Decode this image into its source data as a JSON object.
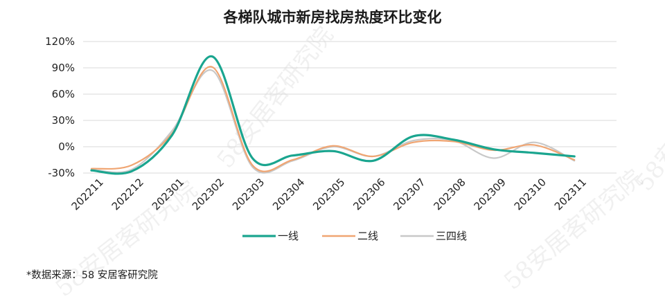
{
  "chart_data": {
    "type": "line",
    "title": "各梯队城市新房找房热度环比变化",
    "categories": [
      "202211",
      "202212",
      "202301",
      "202302",
      "202303",
      "202304",
      "202305",
      "202306",
      "202307",
      "202308",
      "202309",
      "202310",
      "202311"
    ],
    "y_ticks": [
      "120%",
      "90%",
      "60%",
      "30%",
      "0%",
      "-30%"
    ],
    "y_tick_values": [
      120,
      90,
      60,
      30,
      0,
      -30
    ],
    "ylim": [
      -30,
      120
    ],
    "y_unit": "%",
    "grid": true,
    "legend_position": "bottom",
    "series": [
      {
        "name": "一线",
        "color": "#1aa58f",
        "values": [
          -27,
          -28,
          13,
          103,
          -13,
          -10,
          -5,
          -16,
          12,
          8,
          -3,
          -7,
          -11
        ]
      },
      {
        "name": "二线",
        "color": "#f0a572",
        "values": [
          -25,
          -21,
          15,
          91,
          -21,
          -15,
          1,
          -11,
          5,
          6,
          -4,
          2,
          -15
        ]
      },
      {
        "name": "三四线",
        "color": "#c8c8c8",
        "values": [
          -26,
          -26,
          18,
          87,
          -23,
          -16,
          0,
          -11,
          7,
          7,
          -13,
          5,
          -16
        ]
      }
    ],
    "source": "*数据来源：58 安居客研究院",
    "watermark": "58安居客研究院"
  }
}
